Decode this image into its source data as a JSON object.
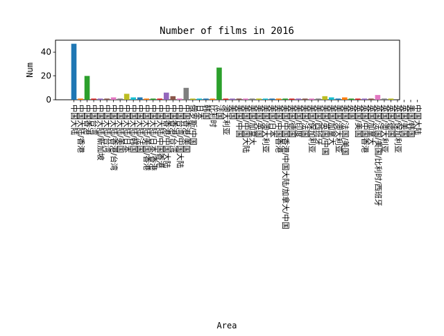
{
  "chart_data": {
    "type": "bar",
    "title": "Number of films in 2016",
    "xlabel": "Area",
    "ylabel": "Num",
    "ylim": [
      0,
      50
    ],
    "yticks": [
      0,
      20,
      40
    ],
    "grid": false,
    "legend": "none",
    "palette": [
      "#1f77b4",
      "#ff7f0e",
      "#2ca02c",
      "#d62728",
      "#9467bd",
      "#8c564b",
      "#e377c2",
      "#7f7f7f",
      "#bcbd22",
      "#17becf"
    ],
    "categories": [
      "中国大陆",
      "中国大陆/香港",
      "中国香港",
      "中国台湾",
      "中国大陆/新加坡",
      "中国大陆/台湾",
      "中国大陆/香港/台湾",
      "中国大陆/美国",
      "中国大陆/日本",
      "中国大陆/韩国",
      "中国大陆/法国",
      "中国大陆/美国/香港",
      "中国大陆/日本/香港",
      "中国大陆/中国香港",
      "中国香港/中国大陆",
      "中国香港/台湾",
      "中国台湾/中国大陆",
      "中国香港/美国",
      "俄罗斯/中国",
      "日本",
      "韩国",
      "比利时",
      "法国",
      "澳大利亚",
      "美国",
      "美国/中国",
      "美国/中国大陆",
      "美国/加拿大",
      "美国/英国",
      "美国/澳大利亚",
      "美国/日本",
      "美国/中国香港",
      "美国/中国香港/中国大陆/加拿大/中国",
      "美国/德国",
      "美国/印度",
      "美国/法国",
      "美国/保加利亚",
      "美国/西班牙",
      "美国/英国/中国",
      "美国/加拿大",
      "美国/澳大利亚",
      "美国/法国/美国",
      "英国",
      "英国/美国",
      "英国/中国香港",
      "英国/加拿大",
      "英国/法国/美国/比利时/西班牙",
      "英国/澳大利亚",
      "英国/德国",
      "英国/保加利亚",
      "英国/美国",
      "美国/韩国",
      "中国大陆"
    ],
    "values": [
      47,
      1,
      20,
      1,
      1,
      1,
      2,
      1,
      5,
      2,
      2,
      1,
      1,
      1,
      6,
      3,
      1,
      10,
      1,
      1,
      1,
      1,
      27,
      1,
      1,
      1,
      1,
      1,
      1,
      1,
      1,
      1,
      1,
      1,
      1,
      1,
      1,
      1,
      3,
      2,
      1,
      2,
      1,
      1,
      1,
      1,
      4,
      1,
      1,
      0,
      0,
      0,
      0
    ]
  }
}
